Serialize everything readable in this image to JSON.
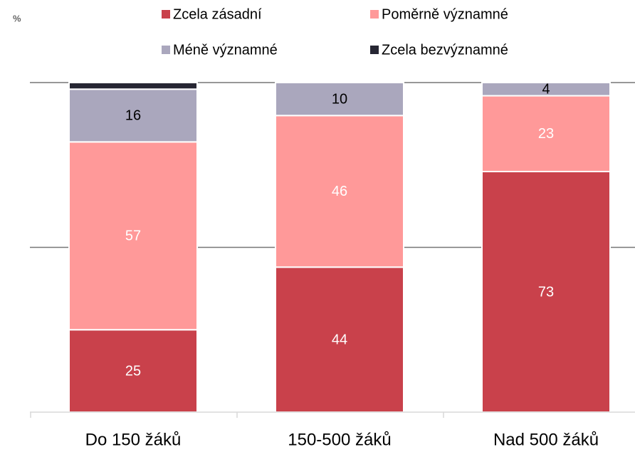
{
  "chart_data": {
    "type": "stacked_bar",
    "y_label": "%",
    "categories": [
      "Do 150 žáků",
      "150-500 žáků",
      "Nad 500 žáků"
    ],
    "series": [
      {
        "name": "Zcela zásadní",
        "color": "#c9414b",
        "label_color": "#ffffff",
        "show_labels": true,
        "values": [
          25,
          44,
          73
        ]
      },
      {
        "name": "Poměrně významné",
        "color": "#ff9999",
        "label_color": "#ffffff",
        "show_labels": true,
        "values": [
          57,
          46,
          23
        ]
      },
      {
        "name": "Méně významné",
        "color": "#aaa7bd",
        "label_color": "#000000",
        "show_labels": true,
        "values": [
          16,
          10,
          4
        ]
      },
      {
        "name": "Zcela bezvýznamné",
        "color": "#262633",
        "label_color": "#ffffff",
        "show_labels": false,
        "values": [
          2,
          0,
          0
        ]
      }
    ],
    "ylim": [
      0,
      100
    ],
    "yticks": [
      50,
      100
    ],
    "grid": true
  }
}
